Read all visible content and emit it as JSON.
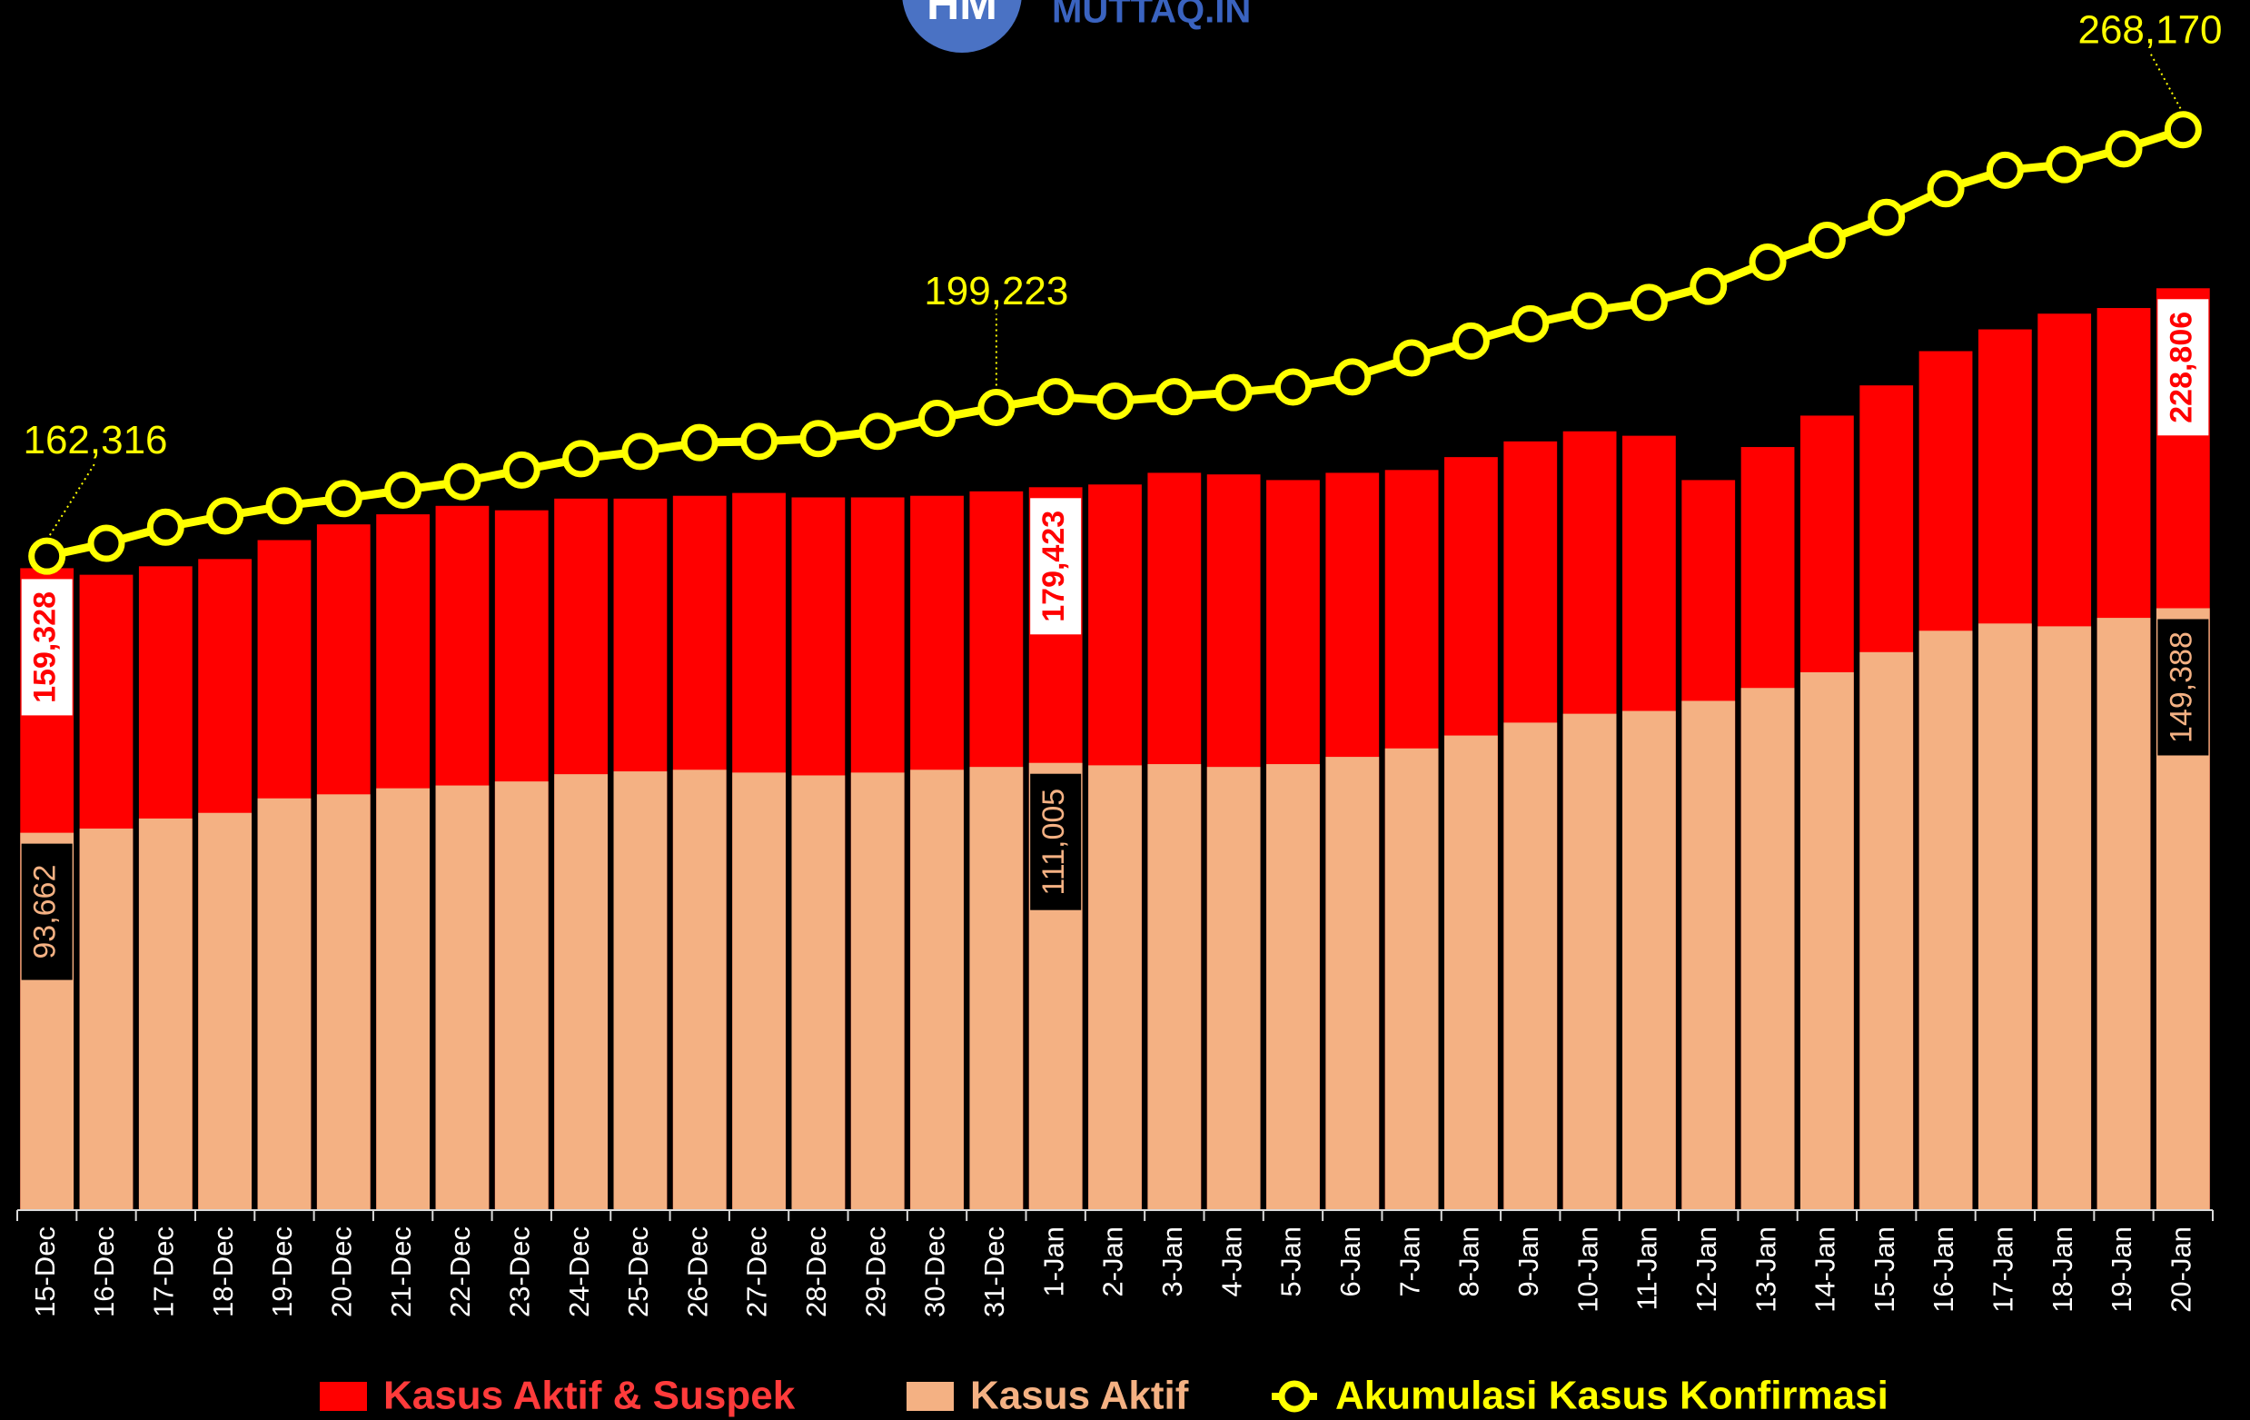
{
  "branding": {
    "logo": "HM",
    "site": "MUTTAQ.IN"
  },
  "chart_data": {
    "type": "bar",
    "categories": [
      "15-Dec",
      "16-Dec",
      "17-Dec",
      "18-Dec",
      "19-Dec",
      "20-Dec",
      "21-Dec",
      "22-Dec",
      "23-Dec",
      "24-Dec",
      "25-Dec",
      "26-Dec",
      "27-Dec",
      "28-Dec",
      "29-Dec",
      "30-Dec",
      "31-Dec",
      "1-Jan",
      "2-Jan",
      "3-Jan",
      "4-Jan",
      "5-Jan",
      "6-Jan",
      "7-Jan",
      "8-Jan",
      "9-Jan",
      "10-Jan",
      "11-Jan",
      "12-Jan",
      "13-Jan",
      "14-Jan",
      "15-Jan",
      "16-Jan",
      "17-Jan",
      "18-Jan",
      "19-Jan",
      "20-Jan"
    ],
    "series": [
      {
        "name": "Kasus Aktif & Suspek",
        "type": "bar",
        "color": "#ff0000",
        "values": [
          159328,
          157700,
          159800,
          161600,
          166300,
          170200,
          172700,
          174800,
          173700,
          176600,
          176600,
          177300,
          178000,
          176900,
          176900,
          177300,
          178400,
          179423,
          180100,
          183000,
          182600,
          181200,
          183000,
          183700,
          186900,
          190800,
          193300,
          192200,
          181200,
          189400,
          197200,
          204700,
          213200,
          218600,
          222500,
          223900,
          228806
        ],
        "value_labels": [
          "159,328",
          null,
          null,
          null,
          null,
          null,
          null,
          null,
          null,
          null,
          null,
          null,
          null,
          null,
          null,
          null,
          null,
          "179,423",
          null,
          null,
          null,
          null,
          null,
          null,
          null,
          null,
          null,
          null,
          null,
          null,
          null,
          null,
          null,
          null,
          null,
          null,
          "228,806"
        ]
      },
      {
        "name": "Kasus Aktif",
        "type": "bar",
        "color": "#f4b183",
        "values": [
          93662,
          94700,
          97200,
          98600,
          102200,
          103200,
          104700,
          105400,
          106400,
          108200,
          108900,
          109300,
          108600,
          107900,
          108600,
          109300,
          110000,
          111005,
          110400,
          110700,
          110000,
          110700,
          112500,
          114600,
          117800,
          121000,
          123200,
          123900,
          126400,
          129600,
          133500,
          138500,
          143800,
          145600,
          144900,
          147000,
          149388
        ],
        "value_labels": [
          "93,662",
          null,
          null,
          null,
          null,
          null,
          null,
          null,
          null,
          null,
          null,
          null,
          null,
          null,
          null,
          null,
          null,
          "111,005",
          null,
          null,
          null,
          null,
          null,
          null,
          null,
          null,
          null,
          null,
          null,
          null,
          null,
          null,
          null,
          null,
          null,
          null,
          "149,388"
        ]
      },
      {
        "name": "Akumulasi Kasus Konfirmasi",
        "type": "line",
        "color": "#ffff00",
        "values": [
          162316,
          165500,
          169500,
          172300,
          174800,
          176600,
          178700,
          180800,
          183700,
          186500,
          188300,
          190500,
          190800,
          191500,
          193300,
          196500,
          199223,
          201900,
          200800,
          201900,
          202900,
          204300,
          206800,
          211500,
          215700,
          220000,
          223200,
          225300,
          229300,
          235300,
          240700,
          246400,
          253500,
          258100,
          259500,
          263400,
          268170
        ],
        "value_labels": [
          "162,316",
          null,
          null,
          null,
          null,
          null,
          null,
          null,
          null,
          null,
          null,
          null,
          null,
          null,
          null,
          null,
          "199,223",
          null,
          null,
          null,
          null,
          null,
          null,
          null,
          null,
          null,
          null,
          null,
          null,
          null,
          null,
          null,
          null,
          null,
          null,
          null,
          "268,170"
        ]
      }
    ]
  }
}
